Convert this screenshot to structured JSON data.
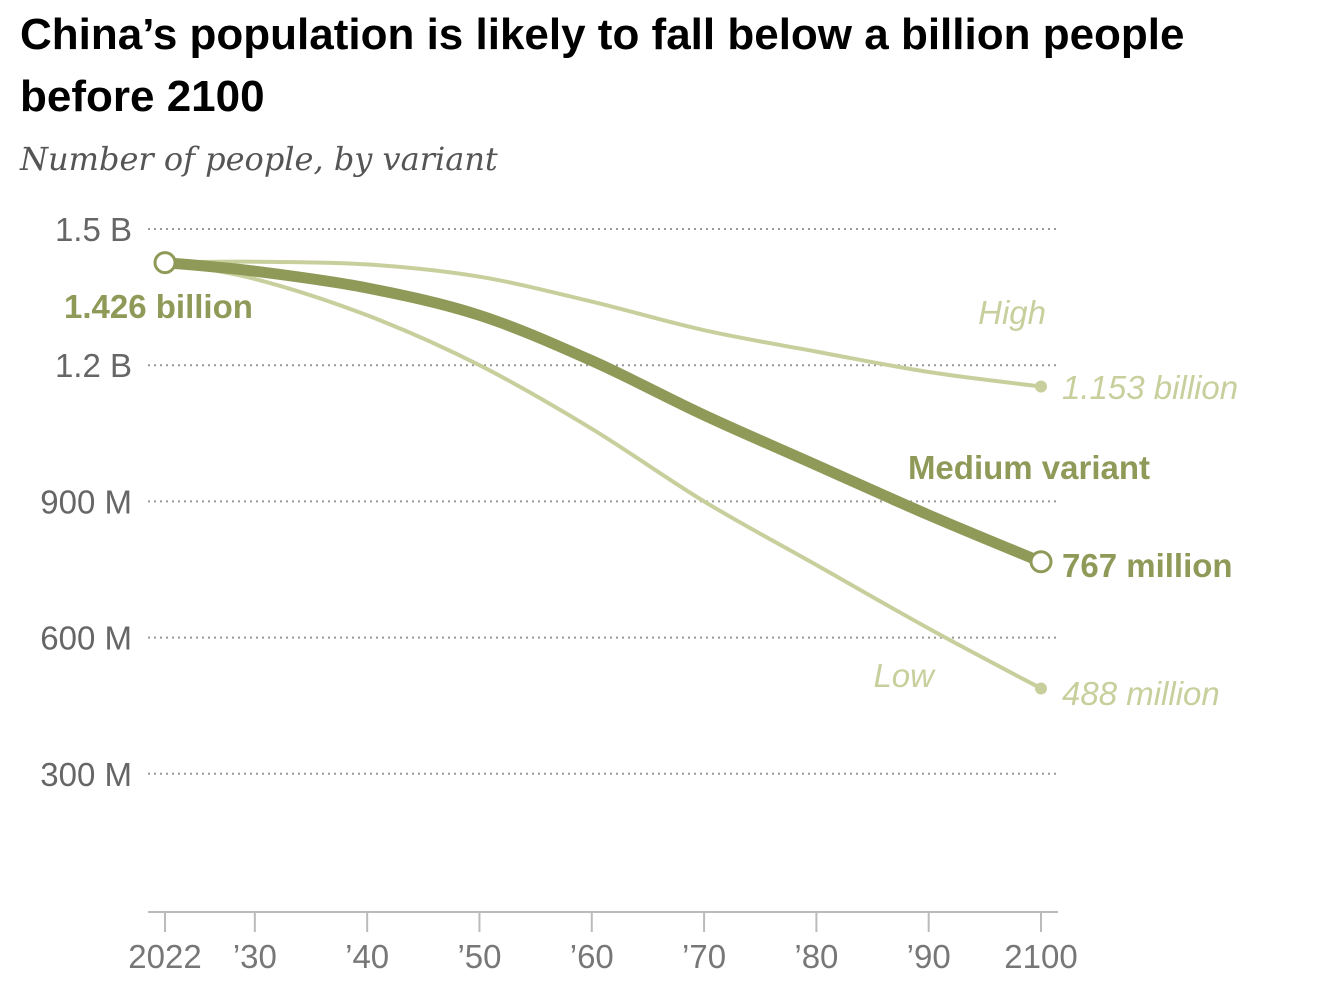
{
  "title": "China’s population is likely to fall below a billion people before 2100",
  "subtitle": "Number of people, by variant",
  "colors": {
    "medium": "#8f9a58",
    "light": "#c8cf9c",
    "grid": "#999999",
    "axis": "#bbbbbb"
  },
  "chart_data": {
    "type": "line",
    "title": "China’s population is likely to fall below a billion people before 2100",
    "subtitle": "Number of people, by variant",
    "xlabel": "",
    "ylabel": "",
    "x": [
      2022,
      2030,
      2040,
      2050,
      2060,
      2070,
      2080,
      2090,
      2100
    ],
    "x_tick_values": [
      2022,
      2030,
      2040,
      2050,
      2060,
      2070,
      2080,
      2090,
      2100
    ],
    "x_tick_labels": [
      "2022",
      "’30",
      "’40",
      "’50",
      "’60",
      "’70",
      "’80",
      "’90",
      "2100"
    ],
    "y_tick_values": [
      300,
      600,
      900,
      1200,
      1500
    ],
    "y_tick_labels": [
      "300 M",
      "600 M",
      "900 M",
      "1.2 B",
      "1.5 B"
    ],
    "ylim": [
      0,
      1500
    ],
    "xlim": [
      2022,
      2100
    ],
    "grid": true,
    "series": [
      {
        "name": "High",
        "label": "High",
        "end_label": "1.153 billion",
        "width": "thin",
        "values": [
          1426,
          1428,
          1422,
          1395,
          1340,
          1277,
          1230,
          1185,
          1153
        ]
      },
      {
        "name": "Medium variant",
        "label": "Medium variant",
        "end_label": "767 million",
        "width": "thick",
        "values": [
          1426,
          1407,
          1370,
          1310,
          1210,
          1090,
          980,
          870,
          767
        ]
      },
      {
        "name": "Low",
        "label": "Low",
        "end_label": "488 million",
        "width": "thin",
        "values": [
          1426,
          1390,
          1310,
          1200,
          1060,
          900,
          760,
          620,
          488
        ]
      }
    ],
    "start_label": "1.426 billion"
  }
}
